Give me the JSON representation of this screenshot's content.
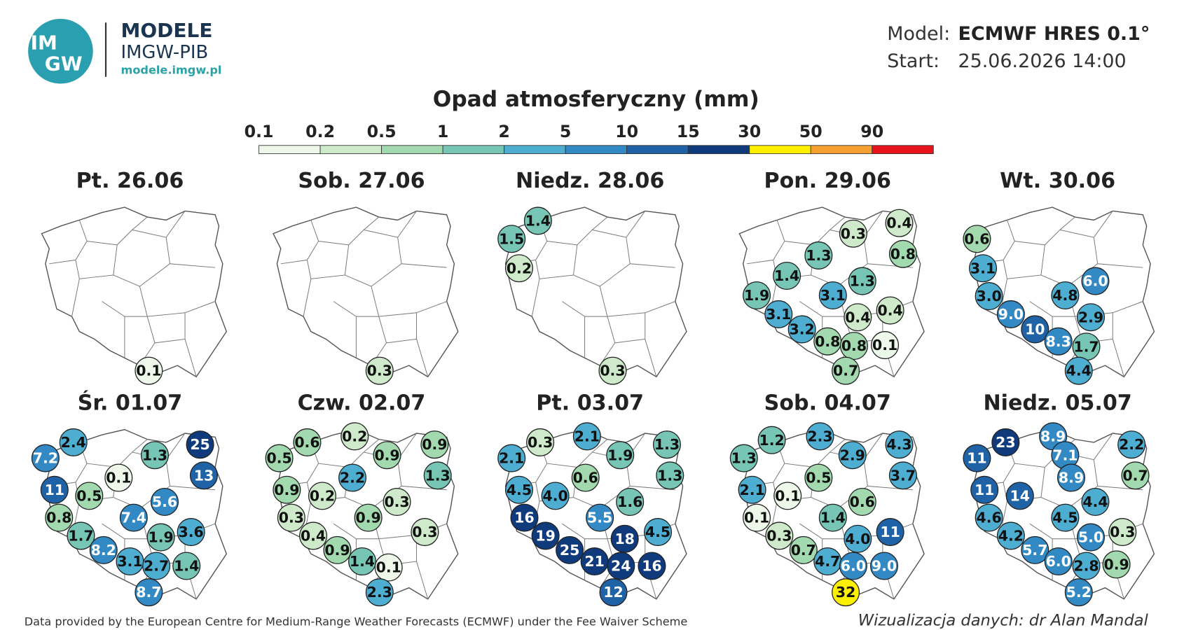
{
  "header": {
    "logo": [
      "IM",
      "GW"
    ],
    "brand": "MODELE",
    "org": "IMGW-PIB",
    "url": "modele.imgw.pl",
    "model_label": "Model:",
    "model": "ECMWF HRES 0.1°",
    "start_label": "Start:",
    "start": "25.06.2026 14:00"
  },
  "legend": {
    "title": "Opad atmosferyczny (mm)",
    "ticks": [
      0.1,
      0.2,
      0.5,
      1,
      2,
      5,
      10,
      15,
      30,
      50,
      90
    ],
    "colors": [
      "#eef8ea",
      "#cfeacb",
      "#a3d9ae",
      "#76c5b5",
      "#4eaed2",
      "#3389c3",
      "#1f62a6",
      "#0f3b7c",
      "#fff000",
      "#f5a030",
      "#e8141c"
    ]
  },
  "maps": [
    {
      "title": "Pt. 26.06",
      "values": [
        "0.1"
      ]
    },
    {
      "title": "Sob. 27.06",
      "values": [
        "0.3"
      ]
    },
    {
      "title": "Niedz. 28.06",
      "values": [
        "1.4",
        "1.5",
        "0.2",
        "0.3"
      ]
    },
    {
      "title": "Pon. 29.06",
      "values": [
        "0.3",
        "0.4",
        "1.3",
        "0.8",
        "1.4",
        "1.3",
        "1.9",
        "3.1",
        "3.1",
        "0.4",
        "0.4",
        "3.2",
        "0.8",
        "0.8",
        "0.1",
        "0.7"
      ]
    },
    {
      "title": "Wt. 30.06",
      "values": [
        "0.6",
        "3.1",
        "6.0",
        "3.0",
        "4.8",
        "9.0",
        "2.9",
        "10",
        "8.3",
        "1.7",
        "4.4"
      ]
    },
    {
      "title": "Śr. 01.07",
      "values": [
        "2.4",
        "25",
        "7.2",
        "1.3",
        "13",
        "0.1",
        "11",
        "0.5",
        "5.6",
        "7.4",
        "0.8",
        "1.7",
        "1.9",
        "3.6",
        "8.2",
        "3.1",
        "2.7",
        "1.4",
        "8.7"
      ]
    },
    {
      "title": "Czw. 02.07",
      "values": [
        "0.6",
        "0.2",
        "0.9",
        "0.5",
        "0.9",
        "1.3",
        "2.2",
        "0.9",
        "0.2",
        "0.3",
        "0.3",
        "0.9",
        "0.4",
        "0.3",
        "0.9",
        "1.4",
        "0.1",
        "2.3"
      ]
    },
    {
      "title": "Pt. 03.07",
      "values": [
        "0.3",
        "2.1",
        "1.3",
        "2.1",
        "1.9",
        "1.3",
        "0.6",
        "4.5",
        "4.0",
        "1.6",
        "5.5",
        "16",
        "4.5",
        "18",
        "19",
        "25",
        "21",
        "24",
        "16",
        "12"
      ]
    },
    {
      "title": "Sob. 04.07",
      "values": [
        "1.2",
        "2.3",
        "4.3",
        "1.3",
        "2.9",
        "3.7",
        "0.5",
        "2.1",
        "0.1",
        "0.6",
        "1.4",
        "0.1",
        "4.0",
        "11",
        "0.3",
        "0.7",
        "4.7",
        "6.0",
        "9.0",
        "32"
      ]
    },
    {
      "title": "Niedz. 05.07",
      "values": [
        "23",
        "8.9",
        "2.2",
        "11",
        "7.1",
        "0.7",
        "11",
        "14",
        "8.9",
        "4.4",
        "4.6",
        "4.5",
        "4.2",
        "5.0",
        "0.3",
        "5.7",
        "6.0",
        "2.8",
        "0.9",
        "5.2"
      ]
    }
  ],
  "footer": {
    "source": "Data provided by the European Centre for Medium-Range Weather Forecasts (ECMWF) under the Fee Waiver Scheme",
    "credit": "Wizualizacja danych: dr Alan Mandal"
  }
}
